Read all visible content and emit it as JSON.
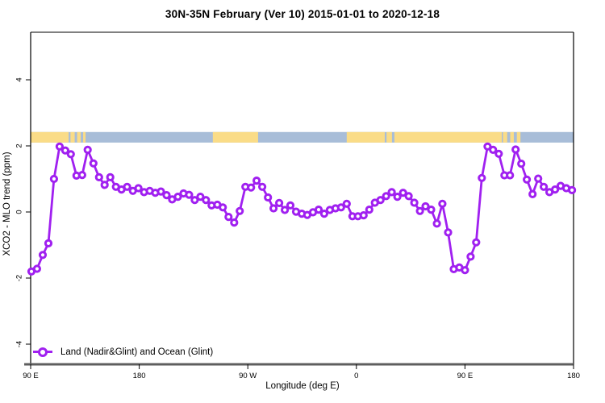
{
  "chart_data": {
    "type": "line",
    "title": "30N-35N February (Ver 10)   2015-01-01 to 2020-12-18",
    "xlabel": "Longitude (deg E)",
    "ylabel": "XCO2 - MLO trend (ppm)",
    "legend_label": "Land (Nadir&Glint) and Ocean (Glint)",
    "legend_position": "bottom-left",
    "grid": false,
    "ylim": [
      -4.6,
      5.4
    ],
    "x_axis_span_deg": 450,
    "x_ticks": [
      {
        "pos": 0,
        "label": "90 E"
      },
      {
        "pos": 90,
        "label": "180"
      },
      {
        "pos": 180,
        "label": "90 W"
      },
      {
        "pos": 270,
        "label": "0"
      },
      {
        "pos": 360,
        "label": "90 E"
      },
      {
        "pos": 450,
        "label": "180"
      }
    ],
    "y_ticks": [
      4,
      2,
      0,
      -2,
      -4
    ],
    "map_strip": {
      "comment": "world land/ocean band across 30N-35N drawn at top of plot",
      "value_top": 2.42,
      "value_bottom": 2.1,
      "ocean_color": "#A8BDD8",
      "land_color": "#FADC87",
      "land_segments_deg": [
        [
          0,
          31.5
        ],
        [
          33,
          36.5
        ],
        [
          38.5,
          41.5
        ],
        [
          43.5,
          45.5
        ],
        [
          151,
          188.5
        ],
        [
          262,
          293.5
        ],
        [
          295,
          299.5
        ],
        [
          301.5,
          390.5
        ],
        [
          391.5,
          395
        ],
        [
          397.5,
          400.5
        ],
        [
          403,
          406
        ]
      ]
    },
    "series": [
      {
        "name": "Land (Nadir&Glint) and Ocean (Glint)",
        "color": "#A020F0",
        "marker": "open-circle",
        "points": [
          [
            0.7,
            -1.8
          ],
          [
            5.3,
            -1.72
          ],
          [
            10,
            -1.3
          ],
          [
            14.7,
            -0.95
          ],
          [
            19.3,
            1.0
          ],
          [
            24,
            1.98
          ],
          [
            28.7,
            1.86
          ],
          [
            33.3,
            1.75
          ],
          [
            38,
            1.1
          ],
          [
            42.7,
            1.12
          ],
          [
            47.3,
            1.88
          ],
          [
            52,
            1.47
          ],
          [
            56.7,
            1.05
          ],
          [
            61.3,
            0.82
          ],
          [
            66,
            1.05
          ],
          [
            70.7,
            0.76
          ],
          [
            75.3,
            0.68
          ],
          [
            80,
            0.76
          ],
          [
            84.7,
            0.64
          ],
          [
            89.3,
            0.72
          ],
          [
            94,
            0.6
          ],
          [
            98.7,
            0.64
          ],
          [
            103.3,
            0.58
          ],
          [
            108,
            0.62
          ],
          [
            112.7,
            0.51
          ],
          [
            117.3,
            0.38
          ],
          [
            122,
            0.46
          ],
          [
            126.7,
            0.56
          ],
          [
            131.3,
            0.52
          ],
          [
            136,
            0.36
          ],
          [
            140.7,
            0.46
          ],
          [
            145.3,
            0.36
          ],
          [
            150,
            0.2
          ],
          [
            154.7,
            0.22
          ],
          [
            159.3,
            0.14
          ],
          [
            164,
            -0.15
          ],
          [
            168.7,
            -0.32
          ],
          [
            173.3,
            0.03
          ],
          [
            178,
            0.76
          ],
          [
            182.7,
            0.74
          ],
          [
            187.3,
            0.95
          ],
          [
            192,
            0.76
          ],
          [
            196.7,
            0.44
          ],
          [
            201.3,
            0.11
          ],
          [
            206,
            0.27
          ],
          [
            210.7,
            0.06
          ],
          [
            215.3,
            0.2
          ],
          [
            220,
            0.01
          ],
          [
            224.7,
            -0.05
          ],
          [
            229.3,
            -0.09
          ],
          [
            234,
            -0.01
          ],
          [
            238.7,
            0.07
          ],
          [
            243.3,
            -0.05
          ],
          [
            248,
            0.06
          ],
          [
            252.7,
            0.11
          ],
          [
            257.3,
            0.14
          ],
          [
            262,
            0.25
          ],
          [
            266.7,
            -0.13
          ],
          [
            271.3,
            -0.13
          ],
          [
            276,
            -0.1
          ],
          [
            280.7,
            0.07
          ],
          [
            285.3,
            0.28
          ],
          [
            290,
            0.36
          ],
          [
            294.7,
            0.48
          ],
          [
            299.3,
            0.6
          ],
          [
            304,
            0.46
          ],
          [
            308.7,
            0.58
          ],
          [
            313.3,
            0.48
          ],
          [
            318,
            0.28
          ],
          [
            322.7,
            0.03
          ],
          [
            327.3,
            0.17
          ],
          [
            332,
            0.07
          ],
          [
            336.7,
            -0.35
          ],
          [
            341.3,
            0.25
          ],
          [
            346,
            -0.62
          ],
          [
            350.7,
            -1.73
          ],
          [
            355.3,
            -1.68
          ],
          [
            360,
            -1.76
          ],
          [
            364.7,
            -1.35
          ],
          [
            369.3,
            -0.92
          ],
          [
            374,
            1.03
          ],
          [
            378.7,
            1.98
          ],
          [
            383.3,
            1.88
          ],
          [
            388,
            1.76
          ],
          [
            392.7,
            1.11
          ],
          [
            397.3,
            1.11
          ],
          [
            402,
            1.89
          ],
          [
            406.7,
            1.46
          ],
          [
            411.3,
            0.98
          ],
          [
            416,
            0.54
          ],
          [
            420.7,
            1.01
          ],
          [
            425.3,
            0.76
          ],
          [
            430,
            0.6
          ],
          [
            434.7,
            0.68
          ],
          [
            439.3,
            0.79
          ],
          [
            444,
            0.72
          ],
          [
            448.7,
            0.66
          ]
        ]
      }
    ],
    "colors": {
      "series_purple": "#A020F0",
      "bottom_axis_gray": "#5E5E5E",
      "box_black": "#000000"
    }
  }
}
